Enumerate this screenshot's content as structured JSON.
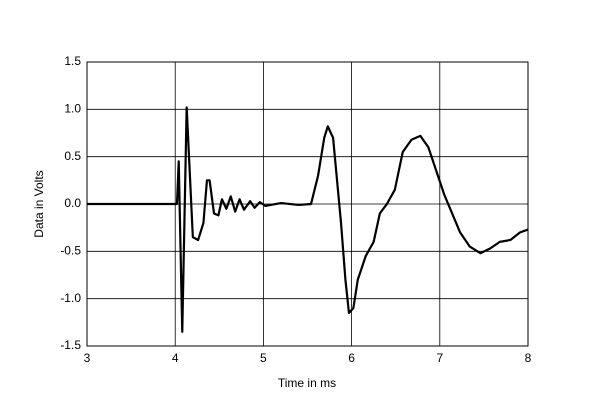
{
  "chart_data": {
    "type": "line",
    "xlabel": "Time in ms",
    "ylabel": "Data in Volts",
    "xlim": [
      3,
      8
    ],
    "ylim": [
      -1.5,
      1.5
    ],
    "xticks": [
      3,
      4,
      5,
      6,
      7,
      8
    ],
    "yticks": [
      -1.5,
      {
        "value": -1.0,
        "label": "-1.0"
      },
      -0.5,
      {
        "value": 0,
        "label": "0.0"
      },
      0.5,
      {
        "value": 1.0,
        "label": "1.0"
      },
      1.5
    ],
    "grid": true,
    "series": [
      {
        "color": "#000000",
        "x": [
          3,
          4.02,
          4.04,
          4.08,
          4.13,
          4.2,
          4.26,
          4.32,
          4.36,
          4.39,
          4.44,
          4.49,
          4.53,
          4.58,
          4.63,
          4.68,
          4.73,
          4.78,
          4.85,
          4.9,
          4.96,
          5.02,
          5.2,
          5.4,
          5.54,
          5.62,
          5.69,
          5.73,
          5.79,
          5.83,
          5.88,
          5.93,
          5.97,
          6.02,
          6.07,
          6.16,
          6.25,
          6.32,
          6.4,
          6.49,
          6.58,
          6.68,
          6.78,
          6.87,
          6.96,
          7.05,
          7.14,
          7.23,
          7.34,
          7.46,
          7.57,
          7.68,
          7.8,
          7.91,
          8
        ],
        "values": [
          0,
          0,
          0.45,
          -1.35,
          1.02,
          -0.35,
          -0.38,
          -0.2,
          0.25,
          0.25,
          -0.1,
          -0.12,
          0.05,
          -0.05,
          0.08,
          -0.08,
          0.05,
          -0.06,
          0.03,
          -0.04,
          0.02,
          -0.02,
          0.01,
          -0.01,
          0,
          0.3,
          0.7,
          0.82,
          0.7,
          0.3,
          -0.2,
          -0.8,
          -1.15,
          -1.1,
          -0.8,
          -0.55,
          -0.4,
          -0.1,
          0,
          0.15,
          0.55,
          0.68,
          0.72,
          0.6,
          0.35,
          0.1,
          -0.1,
          -0.3,
          -0.45,
          -0.52,
          -0.47,
          -0.4,
          -0.38,
          -0.3,
          -0.27
        ]
      }
    ]
  }
}
